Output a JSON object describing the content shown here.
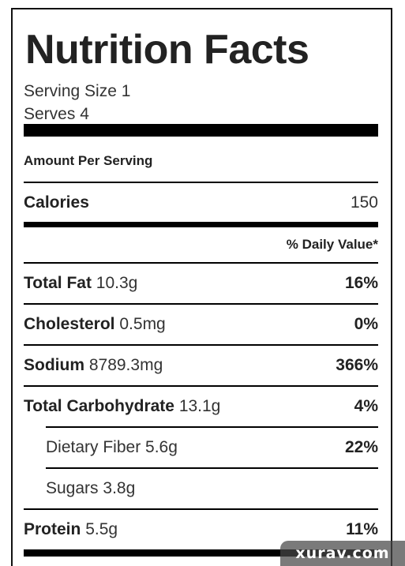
{
  "title": "Nutrition Facts",
  "serving_size": "Serving Size 1",
  "serves": "Serves 4",
  "amount_per_serving": "Amount Per Serving",
  "calories": {
    "label": "Calories",
    "value": "150"
  },
  "daily_value_header": "% Daily Value*",
  "nutrients": [
    {
      "name": "Total Fat",
      "amount": "10.3g",
      "dv": "16%"
    },
    {
      "name": "Cholesterol",
      "amount": "0.5mg",
      "dv": "0%"
    },
    {
      "name": "Sodium",
      "amount": "8789.3mg",
      "dv": "366%"
    },
    {
      "name": "Total Carbohydrate",
      "amount": "13.1g",
      "dv": "4%"
    },
    {
      "name": "Dietary Fiber",
      "amount": "5.6g",
      "dv": "22%"
    },
    {
      "name": "Sugars",
      "amount": "3.8g",
      "dv": ""
    },
    {
      "name": "Protein",
      "amount": "5.5g",
      "dv": "11%"
    }
  ],
  "watermark": "xurav.com"
}
